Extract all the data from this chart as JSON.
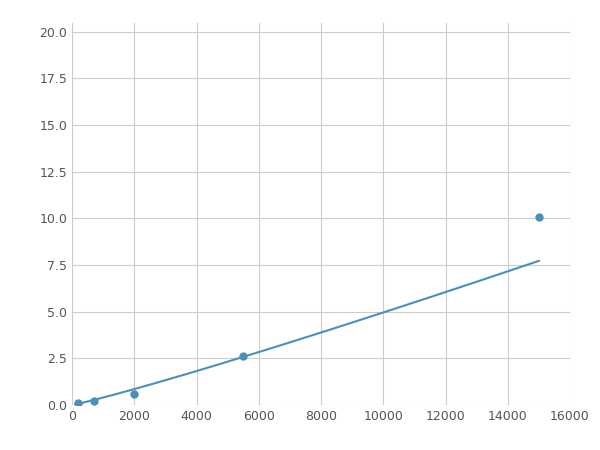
{
  "x": [
    200,
    700,
    2000,
    5500,
    15000
  ],
  "y": [
    0.1,
    0.2,
    0.6,
    2.6,
    10.1
  ],
  "line_color": "#4a90b8",
  "marker_color": "#4a90b8",
  "marker_size": 5,
  "xlim": [
    0,
    16000
  ],
  "ylim": [
    0,
    20.5
  ],
  "xticks": [
    0,
    2000,
    4000,
    6000,
    8000,
    10000,
    12000,
    14000,
    16000
  ],
  "yticks": [
    0.0,
    2.5,
    5.0,
    7.5,
    10.0,
    12.5,
    15.0,
    17.5,
    20.0
  ],
  "grid_color": "#cccccc",
  "bg_color": "#ffffff",
  "figsize": [
    6.0,
    4.5
  ],
  "dpi": 100
}
